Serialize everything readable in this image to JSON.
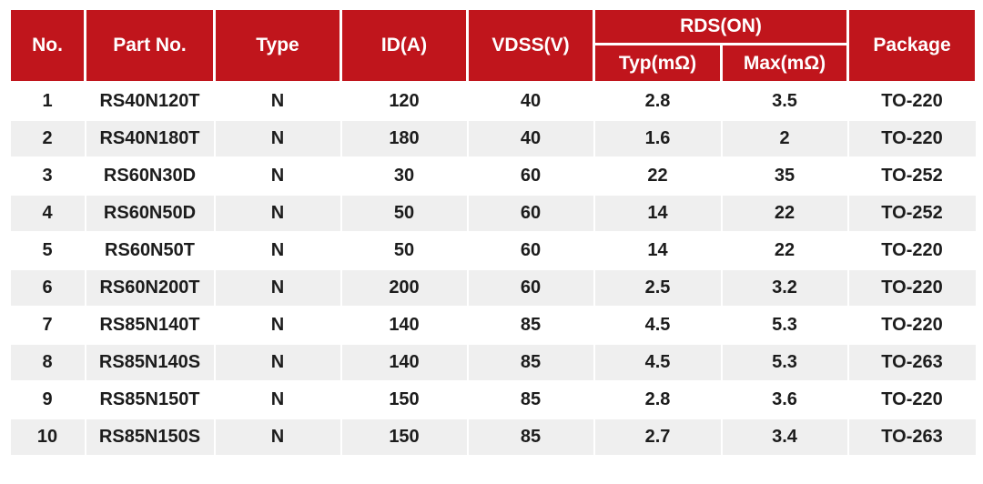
{
  "colors": {
    "header_bg": "#c0151c",
    "header_text": "#ffffff",
    "row_bg": "#ffffff",
    "row_alt_bg": "#efefef",
    "body_text": "#1c1c1c"
  },
  "table": {
    "headers": {
      "no": "No.",
      "part_no": "Part No.",
      "type": "Type",
      "id_a": "ID(A)",
      "vdss_v": "VDSS(V)",
      "rds_on": "RDS(ON)",
      "rds_typ": "Typ(mΩ)",
      "rds_max": "Max(mΩ)",
      "package": "Package"
    },
    "rows": [
      [
        "1",
        "RS40N120T",
        "N",
        "120",
        "40",
        "2.8",
        "3.5",
        "TO-220"
      ],
      [
        "2",
        "RS40N180T",
        "N",
        "180",
        "40",
        "1.6",
        "2",
        "TO-220"
      ],
      [
        "3",
        "RS60N30D",
        "N",
        "30",
        "60",
        "22",
        "35",
        "TO-252"
      ],
      [
        "4",
        "RS60N50D",
        "N",
        "50",
        "60",
        "14",
        "22",
        "TO-252"
      ],
      [
        "5",
        "RS60N50T",
        "N",
        "50",
        "60",
        "14",
        "22",
        "TO-220"
      ],
      [
        "6",
        "RS60N200T",
        "N",
        "200",
        "60",
        "2.5",
        "3.2",
        "TO-220"
      ],
      [
        "7",
        "RS85N140T",
        "N",
        "140",
        "85",
        "4.5",
        "5.3",
        "TO-220"
      ],
      [
        "8",
        "RS85N140S",
        "N",
        "140",
        "85",
        "4.5",
        "5.3",
        "TO-263"
      ],
      [
        "9",
        "RS85N150T",
        "N",
        "150",
        "85",
        "2.8",
        "3.6",
        "TO-220"
      ],
      [
        "10",
        "RS85N150S",
        "N",
        "150",
        "85",
        "2.7",
        "3.4",
        "TO-263"
      ]
    ]
  }
}
